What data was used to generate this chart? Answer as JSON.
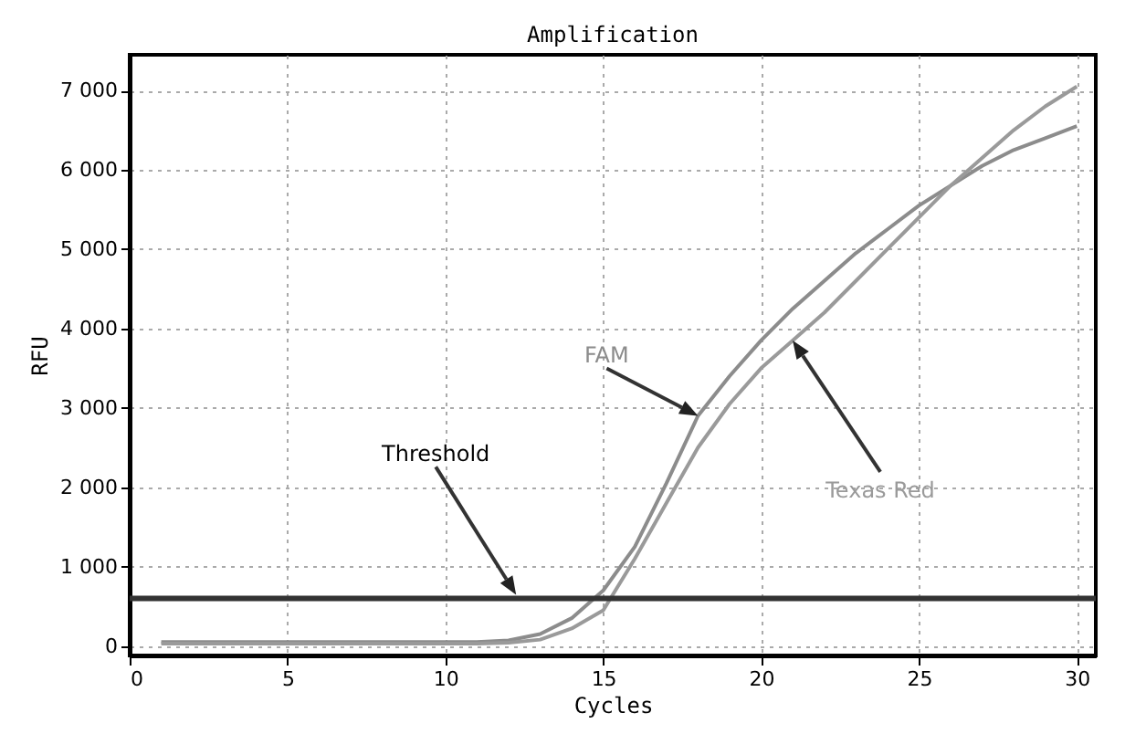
{
  "chart_data": {
    "type": "line",
    "title": "Amplification",
    "xlabel": "Cycles",
    "ylabel": "RFU",
    "x": [
      1,
      2,
      3,
      4,
      5,
      6,
      7,
      8,
      9,
      10,
      11,
      12,
      13,
      14,
      15,
      16,
      17,
      18,
      19,
      20,
      21,
      22,
      23,
      24,
      25,
      26,
      27,
      28,
      29,
      30
    ],
    "series": [
      {
        "name": "FAM",
        "color": "#8c8c8c",
        "values": [
          50,
          50,
          50,
          50,
          50,
          50,
          50,
          50,
          50,
          50,
          50,
          70,
          150,
          350,
          700,
          1250,
          2050,
          2900,
          3400,
          3850,
          4250,
          4600,
          4950,
          5250,
          5550,
          5800,
          6050,
          6250,
          6400,
          6550
        ]
      },
      {
        "name": "Texas Red",
        "color": "#9a9a9a",
        "values": [
          30,
          30,
          30,
          30,
          30,
          30,
          30,
          30,
          30,
          30,
          30,
          40,
          80,
          220,
          450,
          1100,
          1800,
          2500,
          3050,
          3500,
          3850,
          4200,
          4600,
          5000,
          5400,
          5800,
          6150,
          6500,
          6800,
          7050
        ]
      }
    ],
    "ref_lines": [
      {
        "axis": "y",
        "value": 600,
        "label": "Threshold",
        "color": "#333333",
        "line_style": "solid"
      }
    ],
    "xlim": [
      0,
      30.6
    ],
    "ylim": [
      -120,
      7450
    ],
    "xticks": [
      0,
      5,
      10,
      15,
      20,
      25,
      30
    ],
    "yticks": [
      0,
      {
        "value": 1000,
        "label": "1 000"
      },
      {
        "value": 2000,
        "label": "2 000"
      },
      {
        "value": 3000,
        "label": "3 000"
      },
      {
        "value": 4000,
        "label": "4 000"
      },
      {
        "value": 5000,
        "label": "5 000"
      },
      {
        "value": 6000,
        "label": "6 000"
      },
      {
        "value": 7000,
        "label": "7 000"
      }
    ],
    "grid": true,
    "marker": "none",
    "line_style": "solid"
  }
}
